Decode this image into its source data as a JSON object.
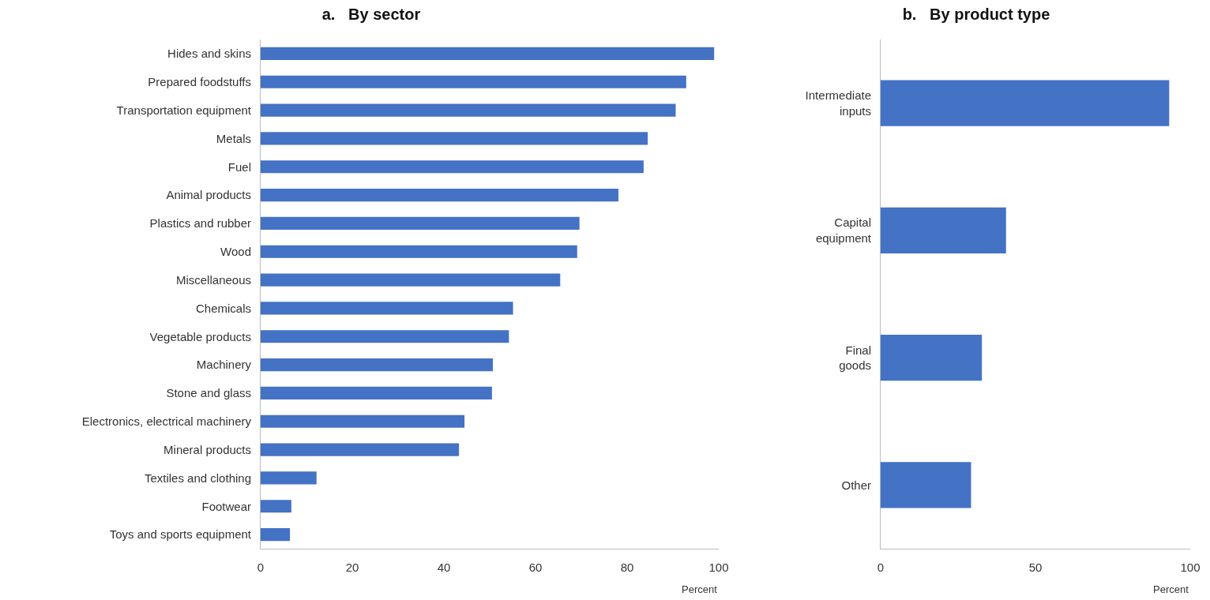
{
  "chart_data": [
    {
      "type": "bar",
      "orientation": "horizontal",
      "title": "a.   By sector",
      "xlabel": "Percent",
      "categories": [
        "Hides and skins",
        "Prepared foodstuffs",
        "Transportation equipment",
        "Metals",
        "Fuel",
        "Animal products",
        "Plastics and rubber",
        "Wood",
        "Miscellaneous",
        "Chemicals",
        "Vegetable products",
        "Machinery",
        "Stone and glass",
        "Electronics, electrical machinery",
        "Mineral products",
        "Textiles and clothing",
        "Footwear",
        "Toys and sports equipment"
      ],
      "values": [
        99,
        92.9,
        90.6,
        84.5,
        83.6,
        78.1,
        69.6,
        69.1,
        65.4,
        55.1,
        54.2,
        50.7,
        50.5,
        44.5,
        43.3,
        12.2,
        6.7,
        6.4
      ],
      "color": "#4472c4",
      "xlim": [
        0,
        100
      ],
      "xticks": [
        0,
        20,
        40,
        60,
        80,
        100
      ],
      "grid": false
    },
    {
      "type": "bar",
      "orientation": "horizontal",
      "title": "b.   By product type",
      "xlabel": "Percent",
      "categories": [
        "Intermediate inputs",
        "Capital equipment",
        "Final goods",
        "Other"
      ],
      "values": [
        93.2,
        40.5,
        32.7,
        29.2
      ],
      "color": "#4472c4",
      "xlim": [
        0,
        100
      ],
      "xticks": [
        0,
        50,
        100
      ],
      "grid": false
    }
  ]
}
